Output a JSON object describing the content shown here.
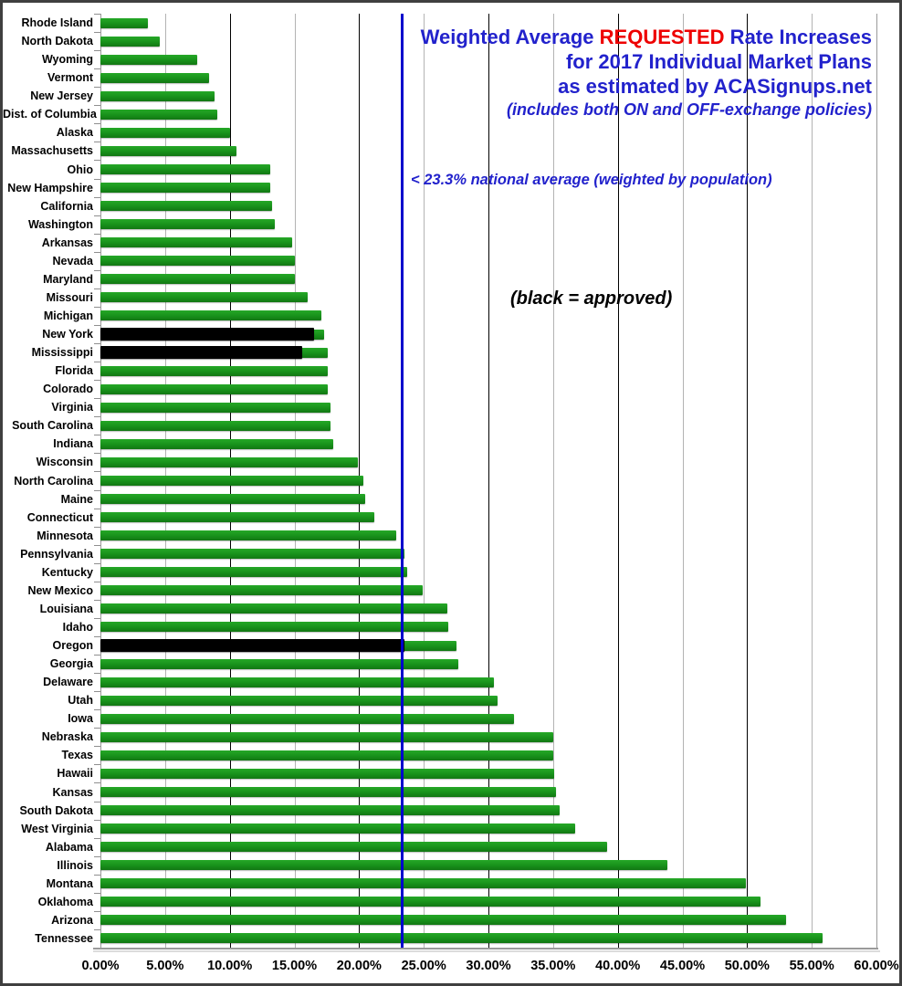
{
  "title": {
    "line1_pre": "Weighted Average ",
    "line1_highlight": "REQUESTED",
    "line1_post": " Rate Increases",
    "line2": "for 2017 Individual Market Plans",
    "line3": "as estimated by ACASignups.net",
    "line4": "(includes both ON and OFF-exchange policies)"
  },
  "annotations": {
    "national_average": "< 23.3% national average (weighted by population)",
    "black_legend": "(black = approved)"
  },
  "colors": {
    "bar_green": "#18911b",
    "bar_green_light": "#25a827",
    "bar_green_dark": "#127713",
    "bar_black": "#000000",
    "title_blue": "#2222cc",
    "highlight_red": "#ee0000",
    "avg_line_blue": "#0000cc"
  },
  "chart_data": {
    "type": "bar",
    "orientation": "horizontal",
    "title": "Weighted Average REQUESTED Rate Increases for 2017 Individual Market Plans as estimated by ACASignups.net",
    "subtitle": "(includes both ON and OFF-exchange policies)",
    "xlabel": "",
    "ylabel": "",
    "xlim": [
      0,
      60
    ],
    "grid": "vertical, minor every 5%, major every 10%",
    "legend": "black = approved",
    "national_average_pct": 23.3,
    "x_tick_labels": [
      "0.00%",
      "5.00%",
      "10.00%",
      "15.00%",
      "20.00%",
      "25.00%",
      "30.00%",
      "35.00%",
      "40.00%",
      "45.00%",
      "50.00%",
      "55.00%",
      "60.00%"
    ],
    "states": [
      {
        "name": "Rhode Island",
        "requested": 3.7,
        "approved": null
      },
      {
        "name": "North Dakota",
        "requested": 4.6,
        "approved": null
      },
      {
        "name": "Wyoming",
        "requested": 7.5,
        "approved": null
      },
      {
        "name": "Vermont",
        "requested": 8.4,
        "approved": null
      },
      {
        "name": "New Jersey",
        "requested": 8.8,
        "approved": null
      },
      {
        "name": "Dist. of Columbia",
        "requested": 9.0,
        "approved": null
      },
      {
        "name": "Alaska",
        "requested": 10.0,
        "approved": null
      },
      {
        "name": "Massachusetts",
        "requested": 10.5,
        "approved": null
      },
      {
        "name": "Ohio",
        "requested": 13.1,
        "approved": null
      },
      {
        "name": "New Hampshire",
        "requested": 13.1,
        "approved": null
      },
      {
        "name": "California",
        "requested": 13.3,
        "approved": null
      },
      {
        "name": "Washington",
        "requested": 13.5,
        "approved": null
      },
      {
        "name": "Arkansas",
        "requested": 14.8,
        "approved": null
      },
      {
        "name": "Nevada",
        "requested": 15.0,
        "approved": null
      },
      {
        "name": "Maryland",
        "requested": 15.0,
        "approved": null
      },
      {
        "name": "Missouri",
        "requested": 16.0,
        "approved": null
      },
      {
        "name": "Michigan",
        "requested": 17.1,
        "approved": null
      },
      {
        "name": "New York",
        "requested": 17.3,
        "approved": 16.5
      },
      {
        "name": "Mississippi",
        "requested": 17.6,
        "approved": 15.6
      },
      {
        "name": "Florida",
        "requested": 17.6,
        "approved": null
      },
      {
        "name": "Colorado",
        "requested": 17.6,
        "approved": null
      },
      {
        "name": "Virginia",
        "requested": 17.8,
        "approved": null
      },
      {
        "name": "South Carolina",
        "requested": 17.8,
        "approved": null
      },
      {
        "name": "Indiana",
        "requested": 18.0,
        "approved": null
      },
      {
        "name": "Wisconsin",
        "requested": 19.9,
        "approved": null
      },
      {
        "name": "North Carolina",
        "requested": 20.3,
        "approved": null
      },
      {
        "name": "Maine",
        "requested": 20.5,
        "approved": null
      },
      {
        "name": "Connecticut",
        "requested": 21.2,
        "approved": null
      },
      {
        "name": "Minnesota",
        "requested": 22.9,
        "approved": null
      },
      {
        "name": "Pennsylvania",
        "requested": 23.5,
        "approved": null
      },
      {
        "name": "Kentucky",
        "requested": 23.7,
        "approved": null
      },
      {
        "name": "New Mexico",
        "requested": 24.9,
        "approved": null
      },
      {
        "name": "Louisiana",
        "requested": 26.8,
        "approved": null
      },
      {
        "name": "Idaho",
        "requested": 26.9,
        "approved": null
      },
      {
        "name": "Oregon",
        "requested": 27.5,
        "approved": 23.5
      },
      {
        "name": "Georgia",
        "requested": 27.7,
        "approved": null
      },
      {
        "name": "Delaware",
        "requested": 30.4,
        "approved": null
      },
      {
        "name": "Utah",
        "requested": 30.7,
        "approved": null
      },
      {
        "name": "Iowa",
        "requested": 32.0,
        "approved": null
      },
      {
        "name": "Nebraska",
        "requested": 35.0,
        "approved": null
      },
      {
        "name": "Texas",
        "requested": 35.0,
        "approved": null
      },
      {
        "name": "Hawaii",
        "requested": 35.1,
        "approved": null
      },
      {
        "name": "Kansas",
        "requested": 35.2,
        "approved": null
      },
      {
        "name": "South Dakota",
        "requested": 35.5,
        "approved": null
      },
      {
        "name": "West Virginia",
        "requested": 36.7,
        "approved": null
      },
      {
        "name": "Alabama",
        "requested": 39.2,
        "approved": null
      },
      {
        "name": "Illinois",
        "requested": 43.8,
        "approved": null
      },
      {
        "name": "Montana",
        "requested": 49.9,
        "approved": null
      },
      {
        "name": "Oklahoma",
        "requested": 51.0,
        "approved": null
      },
      {
        "name": "Arizona",
        "requested": 53.0,
        "approved": null
      },
      {
        "name": "Tennessee",
        "requested": 55.8,
        "approved": null
      }
    ]
  }
}
